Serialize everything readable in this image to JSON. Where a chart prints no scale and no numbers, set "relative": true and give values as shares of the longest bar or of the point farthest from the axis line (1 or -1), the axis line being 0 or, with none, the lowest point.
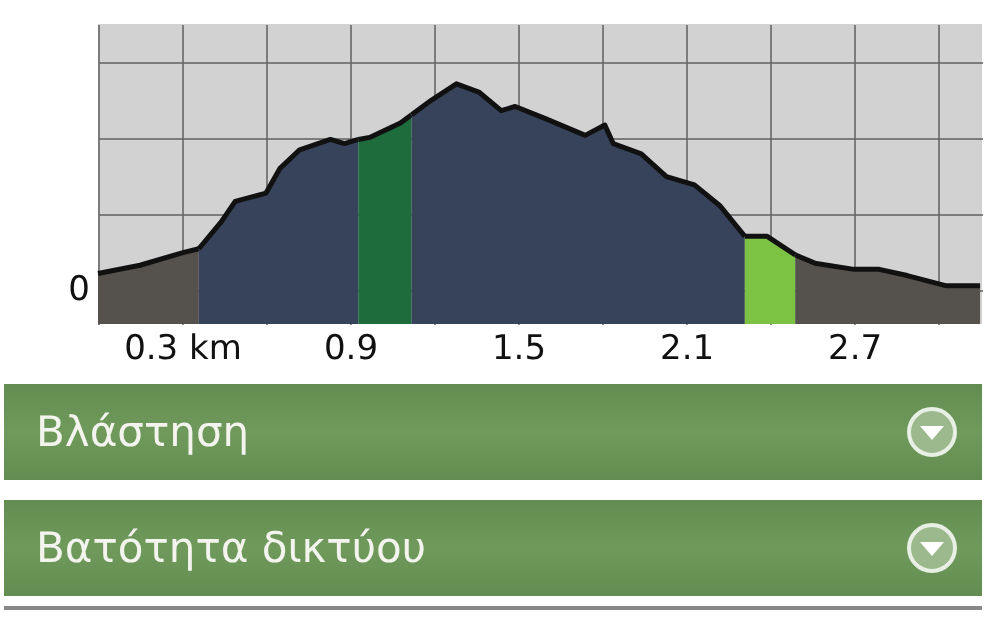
{
  "chart_data": {
    "type": "area",
    "relative": true,
    "grid": true,
    "xlim": [
      0,
      3.157
    ],
    "xticks": [
      {
        "value": 0,
        "label": null
      },
      {
        "value": 0.3,
        "label": "0.3 km"
      },
      {
        "value": 0.6,
        "label": null
      },
      0.9,
      {
        "value": 1.2,
        "label": null
      },
      1.5,
      {
        "value": 1.8,
        "label": null
      },
      2.1,
      {
        "value": 2.4,
        "label": null
      },
      2.7,
      {
        "value": 3.0,
        "label": null
      }
    ],
    "series": [
      {
        "color": "#55524d",
        "x": [
          0,
          0.15,
          0.3,
          0.36
        ],
        "values": [
          0.08,
          0.12,
          0.18,
          0.2
        ]
      },
      {
        "color": "#37435a",
        "x": [
          0.36,
          0.44,
          0.49,
          0.6,
          0.65,
          0.72,
          0.83,
          0.88,
          0.93
        ],
        "values": [
          0.2,
          0.33,
          0.43,
          0.47,
          0.59,
          0.68,
          0.73,
          0.71,
          0.73
        ]
      },
      {
        "color": "#1e6b3b",
        "x": [
          0.93,
          0.97,
          1.08,
          1.12
        ],
        "values": [
          0.73,
          0.74,
          0.81,
          0.85
        ]
      },
      {
        "color": "#37435a",
        "x": [
          1.12,
          1.19,
          1.28,
          1.36,
          1.44,
          1.49,
          1.6,
          1.74,
          1.81,
          1.84,
          1.94,
          2.03,
          2.13,
          2.22,
          2.31
        ],
        "values": [
          0.85,
          0.92,
          1.0,
          0.96,
          0.87,
          0.89,
          0.83,
          0.75,
          0.8,
          0.71,
          0.66,
          0.55,
          0.51,
          0.41,
          0.26
        ]
      },
      {
        "color": "#7cc243",
        "x": [
          2.31,
          2.39,
          2.49
        ],
        "values": [
          0.26,
          0.26,
          0.17
        ]
      },
      {
        "color": "#55524d",
        "x": [
          2.49,
          2.56,
          2.7,
          2.79,
          2.89,
          3.03,
          3.15
        ],
        "values": [
          0.17,
          0.13,
          0.1,
          0.1,
          0.07,
          0.02,
          0.02
        ]
      }
    ],
    "annotations": [
      "0",
      "Βλάστηση",
      "Βατότητα δικτύου"
    ]
  }
}
